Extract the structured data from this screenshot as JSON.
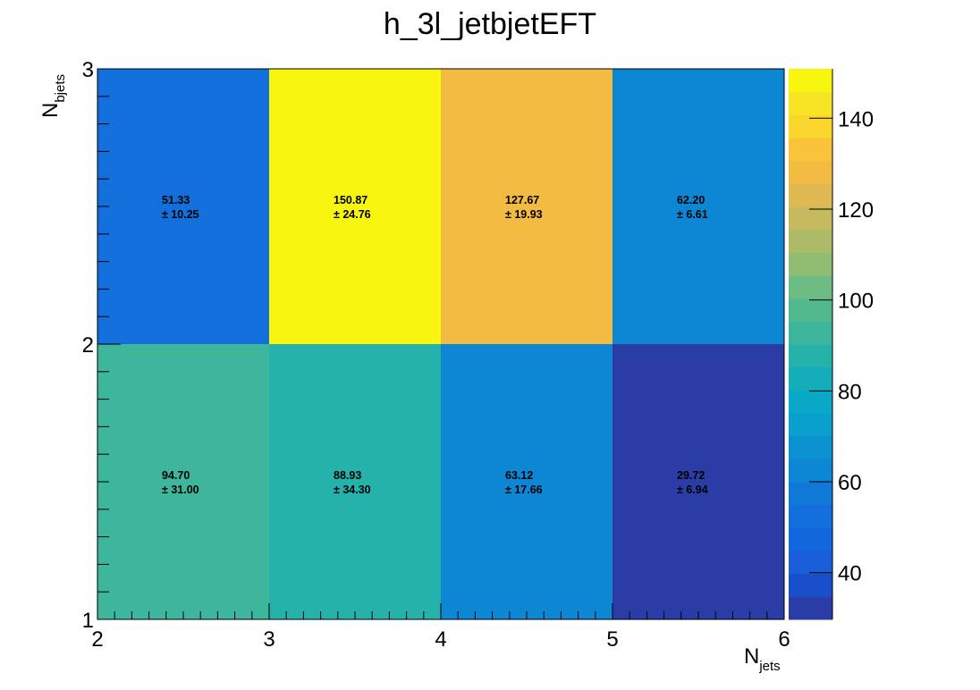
{
  "chart_data": {
    "type": "heatmap",
    "title": "h_3l_jetbjetEFT",
    "xlabel": "N",
    "xlabel_sub": "jets",
    "ylabel": "N",
    "ylabel_sub": "bjets",
    "xlim": [
      2,
      6
    ],
    "ylim": [
      1,
      3
    ],
    "x_ticks": [
      "2",
      "3",
      "4",
      "5",
      "6"
    ],
    "y_ticks": [
      "1",
      "2",
      "3"
    ],
    "x_edges": [
      2,
      3,
      4,
      5,
      6
    ],
    "y_edges": [
      1,
      2,
      3
    ],
    "zlim": [
      29.72,
      150.87
    ],
    "z_ticks": [
      "40",
      "60",
      "80",
      "100",
      "120",
      "140"
    ],
    "cells": [
      {
        "x": 2,
        "y": 1,
        "value": 94.7,
        "label": "94.70",
        "error_label": "± 31.00"
      },
      {
        "x": 3,
        "y": 1,
        "value": 88.93,
        "label": "88.93",
        "error_label": "± 34.30"
      },
      {
        "x": 4,
        "y": 1,
        "value": 63.12,
        "label": "63.12",
        "error_label": "± 17.66"
      },
      {
        "x": 5,
        "y": 1,
        "value": 29.72,
        "label": "29.72",
        "error_label": "± 6.94"
      },
      {
        "x": 2,
        "y": 2,
        "value": 51.33,
        "label": "51.33",
        "error_label": "± 10.25"
      },
      {
        "x": 3,
        "y": 2,
        "value": 150.87,
        "label": "150.87",
        "error_label": "± 24.76"
      },
      {
        "x": 4,
        "y": 2,
        "value": 127.67,
        "label": "127.67",
        "error_label": "± 19.93"
      },
      {
        "x": 5,
        "y": 2,
        "value": 62.2,
        "label": "62.20",
        "error_label": "± 6.61"
      }
    ],
    "palette": [
      "#2a3da6",
      "#1a4fcb",
      "#1a5dd8",
      "#1168dc",
      "#136fdb",
      "#1079d7",
      "#0d86d4",
      "#0b92d1",
      "#0aa0cd",
      "#08a8c6",
      "#14aebb",
      "#25b2aa",
      "#3db69c",
      "#52b98f",
      "#6dbc83",
      "#90bd72",
      "#adbb66",
      "#c7b95d",
      "#dfba52",
      "#f2bc42",
      "#fac43a",
      "#fbd72e",
      "#f7e525",
      "#f8f50f"
    ],
    "grid": false,
    "legend": "colorbar-right"
  }
}
